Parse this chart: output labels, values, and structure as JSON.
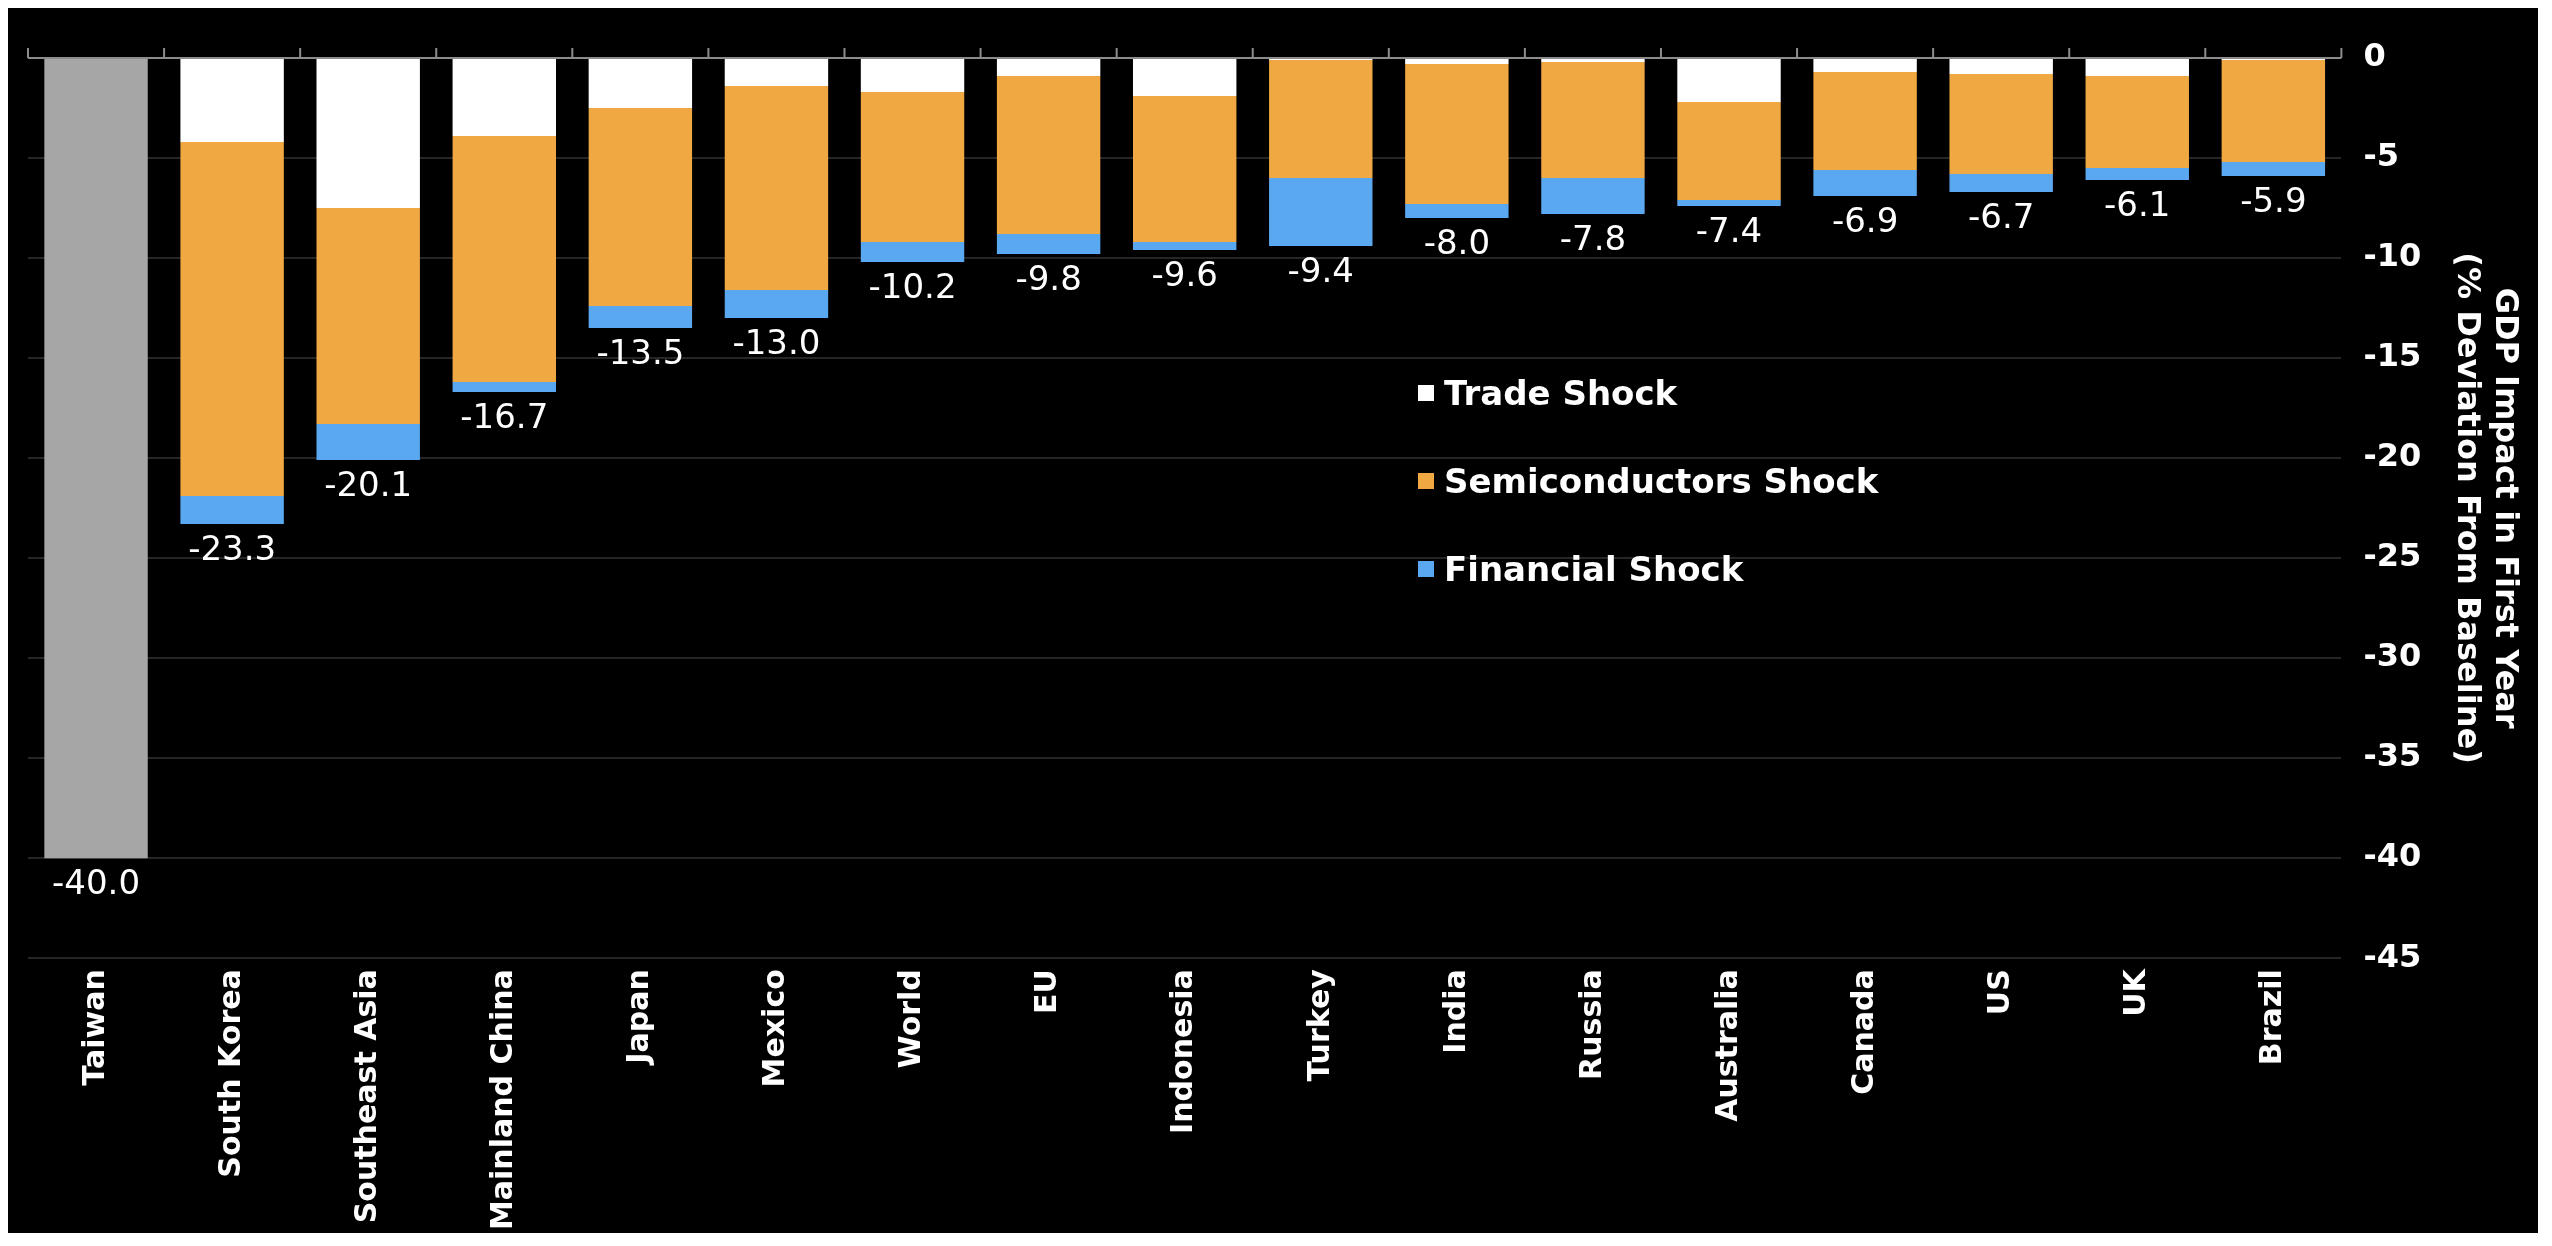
{
  "chart_data": {
    "type": "bar",
    "stacked": true,
    "categories": [
      "Taiwan",
      "South Korea",
      "Southeast Asia",
      "Mainland China",
      "Japan",
      "Mexico",
      "World",
      "EU",
      "Indonesia",
      "Turkey",
      "India",
      "Russia",
      "Australia",
      "Canada",
      "US",
      "UK",
      "Brazil"
    ],
    "series": [
      {
        "name": "Trade Shock",
        "color": "#ffffff",
        "values": [
          null,
          -4.2,
          -7.5,
          -3.9,
          -2.5,
          -1.4,
          -1.7,
          -0.9,
          -1.9,
          -0.1,
          -0.3,
          -0.2,
          -2.2,
          -0.7,
          -0.8,
          -0.9,
          -0.1
        ]
      },
      {
        "name": "Semiconductors Shock",
        "color": "#f0a842",
        "values": [
          null,
          -17.7,
          -10.8,
          -12.3,
          -9.9,
          -10.2,
          -7.5,
          -7.9,
          -7.3,
          -5.9,
          -7.0,
          -5.8,
          -4.9,
          -4.9,
          -5.0,
          -4.6,
          -5.1
        ]
      },
      {
        "name": "Financial Shock",
        "color": "#5aa9f0",
        "values": [
          null,
          -1.4,
          -1.8,
          -0.5,
          -1.1,
          -1.4,
          -1.0,
          -1.0,
          -0.4,
          -3.4,
          -0.7,
          -1.8,
          -0.3,
          -1.3,
          -0.9,
          -0.6,
          -0.7
        ]
      },
      {
        "color": "#a6a6a6",
        "values": [
          -40.0,
          null,
          null,
          null,
          null,
          null,
          null,
          null,
          null,
          null,
          null,
          null,
          null,
          null,
          null,
          null,
          null
        ]
      }
    ],
    "totals": [
      "-40.0",
      "-23.3",
      "-20.1",
      "-16.7",
      "-13.5",
      "-13.0",
      "-10.2",
      "-9.8",
      "-9.6",
      "-9.4",
      "-8.0",
      "-7.8",
      "-7.4",
      "-6.9",
      "-6.7",
      "-6.1",
      "-5.9"
    ],
    "ylabel": "GDP Impact in First Year\n(% Deviation From Baseline)",
    "ylim": [
      -45,
      0
    ],
    "yticks": [
      0,
      -5,
      -10,
      -15,
      -20,
      -25,
      -30,
      -35,
      -40,
      -45
    ],
    "grid": "y",
    "legend": "right"
  }
}
